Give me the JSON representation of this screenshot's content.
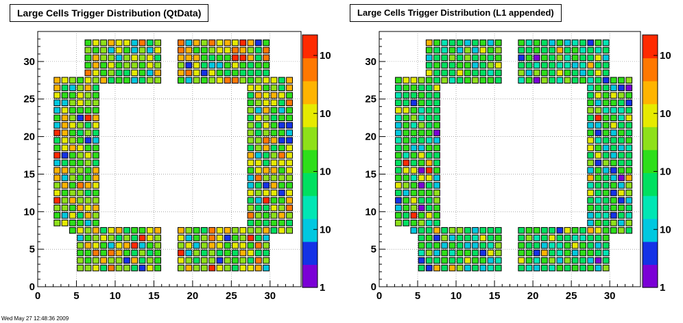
{
  "footer_text": "Wed May 27 12:48:36 2009",
  "chart_data": [
    {
      "type": "heatmap",
      "title": "Large Cells Trigger Distribution (QtData)",
      "xlim": [
        0,
        34
      ],
      "ylim": [
        0,
        34
      ],
      "xticks": [
        0,
        5,
        10,
        15,
        20,
        25,
        30
      ],
      "yticks": [
        0,
        5,
        10,
        15,
        20,
        25,
        30
      ],
      "zscale": "log",
      "zlabels": [
        "1",
        "10",
        "10",
        "10",
        "10"
      ],
      "grid": true,
      "legend": "colorbar-right",
      "palette": [
        "#7b00d6",
        "#1432e6",
        "#00c8e0",
        "#00e6b4",
        "#00e060",
        "#2ede1a",
        "#8ee01a",
        "#e6ea00",
        "#ffb400",
        "#ff7800",
        "#ff2a00"
      ]
    },
    {
      "type": "heatmap",
      "title": "Large Cells Trigger Distribution (L1 appended)",
      "xlim": [
        0,
        34
      ],
      "ylim": [
        0,
        34
      ],
      "xticks": [
        0,
        5,
        10,
        15,
        20,
        25,
        30
      ],
      "yticks": [
        0,
        5,
        10,
        15,
        20,
        25,
        30
      ],
      "zscale": "log",
      "zlabels": [
        "1",
        "10",
        "10",
        "10",
        "10"
      ],
      "grid": true,
      "legend": "colorbar-right",
      "palette": [
        "#7b00d6",
        "#1432e6",
        "#00c8e0",
        "#00e6b4",
        "#00e060",
        "#2ede1a",
        "#8ee01a",
        "#e6ea00",
        "#ffb400",
        "#ff7800",
        "#ff2a00"
      ]
    }
  ]
}
